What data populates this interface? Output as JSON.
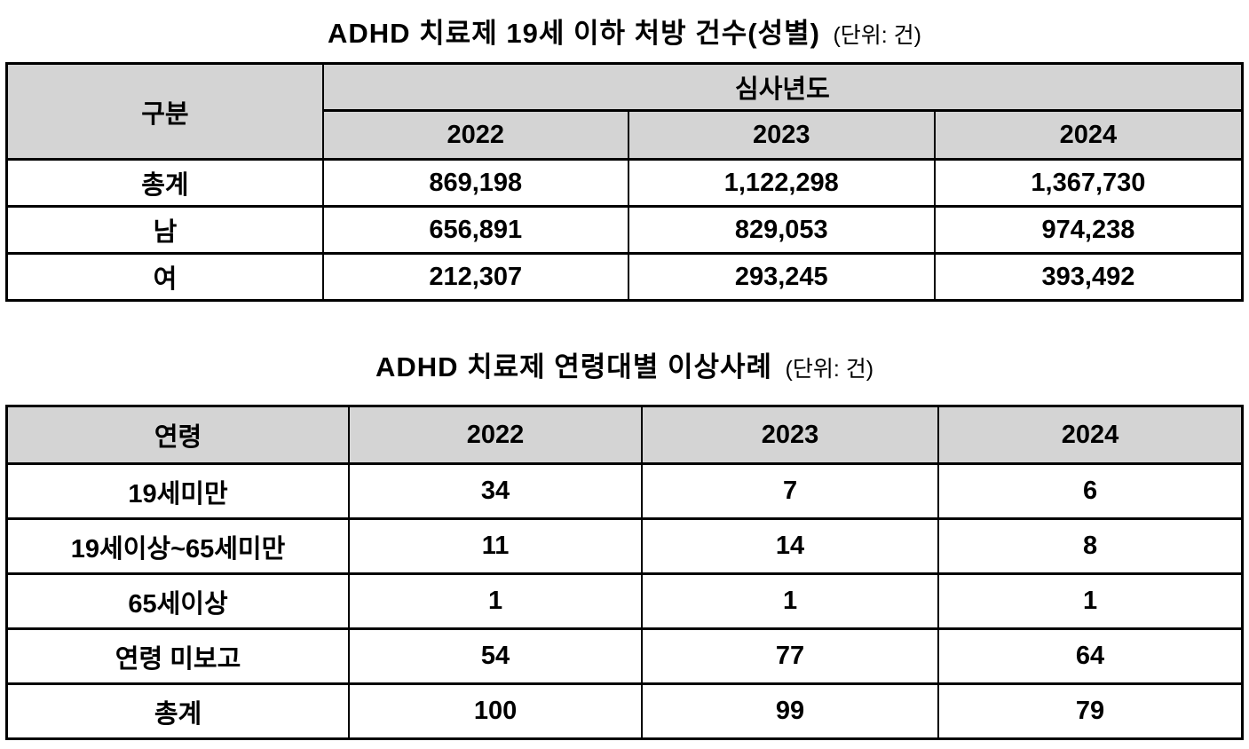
{
  "page": {
    "background_color": "#ffffff",
    "header_fill_color": "#d4d4d4",
    "border_color": "#000000",
    "text_color": "#000000"
  },
  "table1": {
    "title": "ADHD 치료제 19세 이하 처방 건수(성별)",
    "unit_note": "(단위: 건)",
    "header": {
      "category": "구분",
      "year_group": "심사년도",
      "years": [
        "2022",
        "2023",
        "2024"
      ]
    },
    "rows": [
      {
        "label": "총계",
        "values": [
          "869,198",
          "1,122,298",
          "1,367,730"
        ]
      },
      {
        "label": "남",
        "values": [
          "656,891",
          "829,053",
          "974,238"
        ]
      },
      {
        "label": "여",
        "values": [
          "212,307",
          "293,245",
          "393,492"
        ]
      }
    ]
  },
  "table2": {
    "title": "ADHD 치료제 연령대별 이상사례",
    "unit_note": "(단위: 건)",
    "header": {
      "category": "연령",
      "years": [
        "2022",
        "2023",
        "2024"
      ]
    },
    "rows": [
      {
        "label": "19세미만",
        "values": [
          "34",
          "7",
          "6"
        ]
      },
      {
        "label": "19세이상~65세미만",
        "values": [
          "11",
          "14",
          "8"
        ]
      },
      {
        "label": "65세이상",
        "values": [
          "1",
          "1",
          "1"
        ]
      },
      {
        "label": "연령 미보고",
        "values": [
          "54",
          "77",
          "64"
        ]
      },
      {
        "label": "총계",
        "values": [
          "100",
          "99",
          "79"
        ]
      }
    ]
  }
}
